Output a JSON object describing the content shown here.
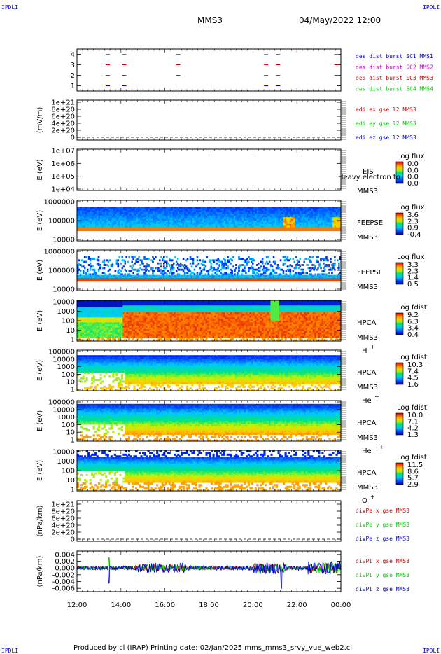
{
  "header": {
    "corner_tl": "IPDLI",
    "corner_tr": "IPDLI",
    "corner_bl": "IPDLI",
    "corner_br": "IPDLI",
    "spacecraft": "MMS3",
    "datetime": "04/May/2022 12:00"
  },
  "footer": {
    "text": "Produced by cl (IRAP)   Printing date: 02/Jan/2025   mms_mms3_srvy_vue_web2.cl"
  },
  "colors": {
    "red": "#cc0000",
    "green": "#00cc00",
    "blue": "#0000cc",
    "magenta": "#cc00cc"
  },
  "chart_data": [
    {
      "type": "scatter",
      "name": "burst",
      "ylim": [
        0.5,
        4.5
      ],
      "yticks": [
        "1",
        "2",
        "3",
        "4"
      ],
      "legend": [
        {
          "text": "des dist burst SC1 MMS1",
          "color": "#0000cc"
        },
        {
          "text": "des dist burst SC2 MMS2",
          "color": "#cc00cc"
        },
        {
          "text": "des dist burst SC3 MMS3",
          "color": "#cc0000"
        },
        {
          "text": "des dist burst SC4 MMS4",
          "color": "#00cc00"
        }
      ],
      "burst_times": [
        13.4,
        14.15,
        16.6,
        20.6,
        21.15,
        23.8
      ]
    },
    {
      "type": "line",
      "name": "edi",
      "ylabel": "(mV/m)",
      "yticks": [
        "1e+21",
        "8e+20",
        "6e+20",
        "4e+20",
        "2e+20",
        "0"
      ],
      "legend": [
        {
          "text": "edi ex gse l2 MMS3",
          "color": "#cc0000"
        },
        {
          "text": "edi ey gse l2 MMS3",
          "color": "#00cc00"
        },
        {
          "text": "edi ez gse l2 MMS3",
          "color": "#0000cc"
        }
      ]
    },
    {
      "type": "heatmap",
      "name": "eis",
      "ylabel": "E (eV)",
      "yticks": [
        "1e+07",
        "1e+06",
        "1e+05",
        "1e+04"
      ],
      "label1": "EIS",
      "label2": "MMS3",
      "extra": "Heavy electron to",
      "cb_title": "Log flux",
      "cb_ticks": [
        "0.0",
        "0.0",
        "0.0",
        "0.0"
      ]
    },
    {
      "type": "heatmap",
      "name": "feepse",
      "ylabel": "E (eV)",
      "yticks": [
        "1000000",
        "100000",
        "10000"
      ],
      "label1": "FEEPSE",
      "label2": "MMS3",
      "cb_title": "Log flux",
      "cb_ticks": [
        "3.6",
        "2.3",
        "0.9",
        "-0.4"
      ]
    },
    {
      "type": "heatmap",
      "name": "feepsi",
      "ylabel": "E (eV)",
      "yticks": [
        "1000000",
        "100000",
        "10000"
      ],
      "label1": "FEEPSI",
      "label2": "MMS3",
      "cb_title": "Log flux",
      "cb_ticks": [
        "3.3",
        "2.3",
        "1.4",
        "0.5"
      ]
    },
    {
      "type": "heatmap",
      "name": "hpca_h",
      "ylabel": "E (eV)",
      "yticks": [
        "10000",
        "1000",
        "100",
        "10",
        "1"
      ],
      "label1": "HPCA",
      "label2": "MMS3",
      "species": "H",
      "charge": "+",
      "cb_title": "Log fdist",
      "cb_ticks": [
        "9.2",
        "6.3",
        "3.4",
        "0.4"
      ]
    },
    {
      "type": "heatmap",
      "name": "hpca_he",
      "ylabel": "E (eV)",
      "yticks": [
        "100000",
        "10000",
        "1000",
        "100",
        "10",
        "1"
      ],
      "label1": "HPCA",
      "label2": "MMS3",
      "species": "He",
      "charge": "+",
      "cb_title": "Log fdist",
      "cb_ticks": [
        "10.3",
        "7.4",
        "4.5",
        "1.6"
      ]
    },
    {
      "type": "heatmap",
      "name": "hpca_hepp",
      "ylabel": "E (eV)",
      "yticks": [
        "100000",
        "10000",
        "1000",
        "100",
        "10",
        "1"
      ],
      "label1": "HPCA",
      "label2": "MMS3",
      "species": "He",
      "charge": "++",
      "cb_title": "Log fdist",
      "cb_ticks": [
        "10.0",
        "7.1",
        "4.2",
        "1.3"
      ]
    },
    {
      "type": "heatmap",
      "name": "hpca_o",
      "ylabel": "E (eV)",
      "yticks": [
        "10000",
        "1000",
        "100",
        "10",
        "1"
      ],
      "label1": "HPCA",
      "label2": "MMS3",
      "species": "O",
      "charge": "+",
      "cb_title": "Log fdist",
      "cb_ticks": [
        "11.5",
        "8.6",
        "5.7",
        "2.9"
      ]
    },
    {
      "type": "line",
      "name": "divpe",
      "ylabel": "(nPa/km)",
      "yticks": [
        "1e+21",
        "8e+20",
        "6e+20",
        "4e+20",
        "2e+20",
        "0"
      ],
      "legend": [
        {
          "text": "divPe x gse MMS3",
          "color": "#cc0000"
        },
        {
          "text": "divPe y gse MMS3",
          "color": "#00cc00"
        },
        {
          "text": "divPe z gse MMS3",
          "color": "#0000cc"
        }
      ]
    },
    {
      "type": "line",
      "name": "divpi",
      "ylabel": "(nPa/km)",
      "ylim": [
        -0.007,
        0.005
      ],
      "yticks": [
        "0.004",
        "0.002",
        "0.000",
        "-0.002",
        "-0.004",
        "-0.006"
      ],
      "legend": [
        {
          "text": "divPi x gse MMS3",
          "color": "#cc0000"
        },
        {
          "text": "divPi y gse MMS3",
          "color": "#00cc00"
        },
        {
          "text": "divPi z gse MMS3",
          "color": "#0000cc"
        }
      ],
      "xticks": [
        "12:00",
        "14:00",
        "16:00",
        "18:00",
        "20:00",
        "22:00",
        "00:00"
      ]
    }
  ]
}
